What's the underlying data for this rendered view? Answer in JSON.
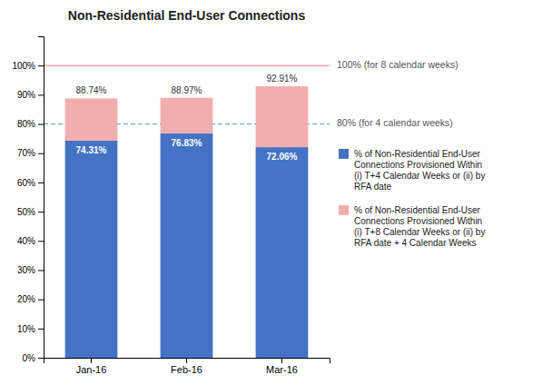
{
  "chart_data": {
    "type": "bar",
    "title": "Non-Residential End-User Connections",
    "categories": [
      "Jan-16",
      "Feb-16",
      "Mar-16"
    ],
    "stacked": true,
    "series": [
      {
        "name": "% of Non-Residential End-User\nConnections Provisioned Within\n(i) T+4 Calendar Weeks or (ii) by\nRFA date",
        "color": "#4472C4",
        "values": [
          74.31,
          76.83,
          72.06
        ],
        "value_labels": [
          "74.31%",
          "76.83%",
          "72.06%"
        ],
        "data_labels": true
      },
      {
        "name": "% of Non-Residential End-User\nConnections Provisioned Within\n(i) T+8 Calendar Weeks or (ii) by\nRFA date + 4 Calendar Weeks",
        "color": "#F2AEAE",
        "values": [
          14.43,
          12.14,
          20.85
        ],
        "data_labels": false
      }
    ],
    "totals": [
      88.74,
      88.97,
      92.91
    ],
    "total_labels": [
      "88.74%",
      "88.97%",
      "92.91%"
    ],
    "reference_lines": [
      {
        "value": 100,
        "label": "100% (for 8 calendar weeks)",
        "color": "#FF8080",
        "line_style": "solid"
      },
      {
        "value": 80,
        "label": "80% (for 4 calendar weeks)",
        "color": "#5B9BD5",
        "line_style": "dashed"
      }
    ],
    "ylim": [
      0,
      110
    ],
    "yticks": [
      {
        "value": 0,
        "label": "0%"
      },
      {
        "value": 10,
        "label": "10%"
      },
      {
        "value": 20,
        "label": "20%"
      },
      {
        "value": 30,
        "label": "30%"
      },
      {
        "value": 40,
        "label": "40%"
      },
      {
        "value": 50,
        "label": "50%"
      },
      {
        "value": 60,
        "label": "60%"
      },
      {
        "value": 70,
        "label": "70%"
      },
      {
        "value": 80,
        "label": "80%"
      },
      {
        "value": 90,
        "label": "90%"
      },
      {
        "value": 100,
        "label": "100%"
      }
    ],
    "grid": false,
    "legend": "right"
  }
}
